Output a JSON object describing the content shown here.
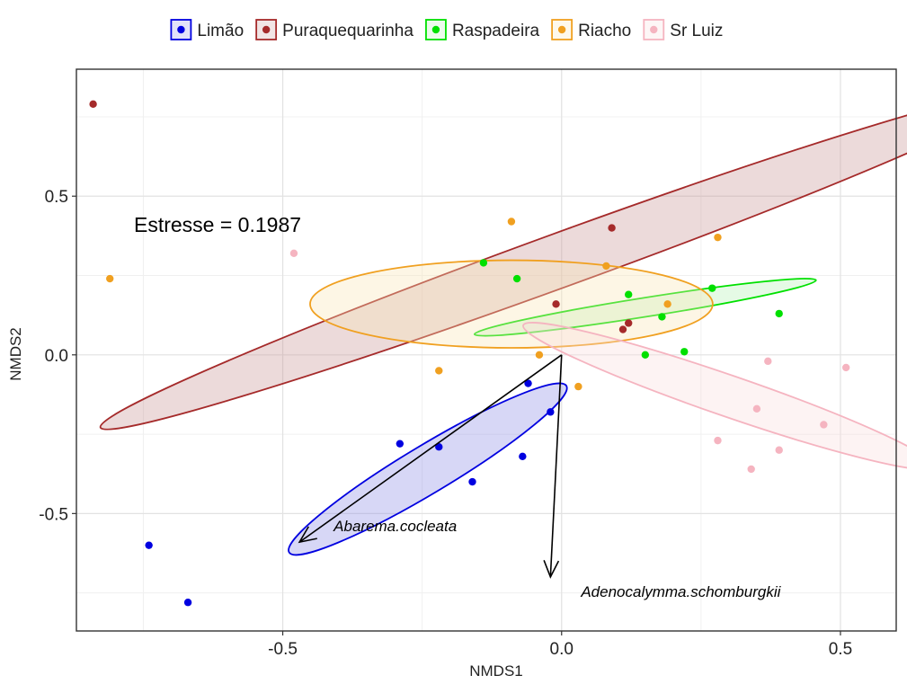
{
  "chart_data": {
    "type": "scatter",
    "xlabel": "NMDS1",
    "ylabel": "NMDS2",
    "xlim": [
      -0.87,
      0.6
    ],
    "ylim": [
      -0.87,
      0.9
    ],
    "x_ticks": [
      -0.5,
      0.0,
      0.5
    ],
    "x_tick_labels": [
      "-0.5",
      "0.0",
      "0.5"
    ],
    "y_ticks": [
      -0.5,
      0.0,
      0.5
    ],
    "y_tick_labels": [
      "-0.5",
      "0.0",
      "0.5"
    ],
    "grid": true,
    "legend_position": "top",
    "annotation": "Estresse = 0.1987",
    "series": [
      {
        "name": "Limão",
        "color": "#0000e0",
        "fill": "#8c8ce6",
        "points": [
          [
            -0.06,
            -0.09
          ],
          [
            -0.02,
            -0.18
          ],
          [
            -0.29,
            -0.28
          ],
          [
            -0.22,
            -0.29
          ],
          [
            -0.07,
            -0.32
          ],
          [
            -0.16,
            -0.4
          ],
          [
            -0.74,
            -0.6
          ],
          [
            -0.67,
            -0.78
          ]
        ],
        "ellipse": {
          "cx": -0.24,
          "cy": -0.36,
          "rx": 0.29,
          "ry": 0.075,
          "angle_deg": 31
        }
      },
      {
        "name": "Puraquequarinha",
        "color": "#a52a2a",
        "fill": "#c89696",
        "points": [
          [
            -0.84,
            0.79
          ],
          [
            0.09,
            0.4
          ],
          [
            -0.01,
            0.16
          ],
          [
            0.12,
            0.1
          ],
          [
            0.11,
            0.08
          ]
        ],
        "ellipse": {
          "cx": 0.0,
          "cy": 0.3,
          "rx": 0.88,
          "ry": 0.085,
          "angle_deg": 20
        }
      },
      {
        "name": "Raspadeira",
        "color": "#00e000",
        "fill": "#b4f0b4",
        "points": [
          [
            -0.14,
            0.29
          ],
          [
            -0.08,
            0.24
          ],
          [
            0.12,
            0.19
          ],
          [
            0.27,
            0.21
          ],
          [
            0.39,
            0.13
          ],
          [
            0.18,
            0.12
          ],
          [
            0.22,
            0.01
          ],
          [
            0.15,
            0.0
          ]
        ],
        "ellipse": {
          "cx": 0.15,
          "cy": 0.15,
          "rx": 0.31,
          "ry": 0.03,
          "angle_deg": 9
        }
      },
      {
        "name": "Riacho",
        "color": "#f0a020",
        "fill": "#fae6b4",
        "points": [
          [
            -0.09,
            0.42
          ],
          [
            0.28,
            0.37
          ],
          [
            -0.81,
            0.24
          ],
          [
            0.08,
            0.28
          ],
          [
            0.19,
            0.16
          ],
          [
            -0.04,
            0.0
          ],
          [
            -0.22,
            -0.05
          ],
          [
            0.03,
            -0.1
          ]
        ],
        "ellipse": {
          "cx": -0.09,
          "cy": 0.16,
          "rx": 0.361,
          "ry": 0.138,
          "angle_deg": 0
        }
      },
      {
        "name": "Sr Luiz",
        "color": "#f5b4c0",
        "fill": "#f8dcdc",
        "points": [
          [
            -0.48,
            0.32
          ],
          [
            0.37,
            -0.02
          ],
          [
            0.51,
            -0.04
          ],
          [
            0.35,
            -0.17
          ],
          [
            0.47,
            -0.22
          ],
          [
            0.28,
            -0.27
          ],
          [
            0.39,
            -0.3
          ],
          [
            0.34,
            -0.36
          ]
        ],
        "ellipse": {
          "cx": 0.3,
          "cy": -0.13,
          "rx": 0.39,
          "ry": 0.065,
          "angle_deg": -19
        }
      }
    ],
    "vectors": [
      {
        "label": "Abarema.cocleata",
        "x": -0.47,
        "y": -0.59
      },
      {
        "label": "Adenocalymma.schomburgkii",
        "x": -0.02,
        "y": -0.7
      }
    ],
    "vector_origin": [
      0.0,
      0.0
    ]
  }
}
